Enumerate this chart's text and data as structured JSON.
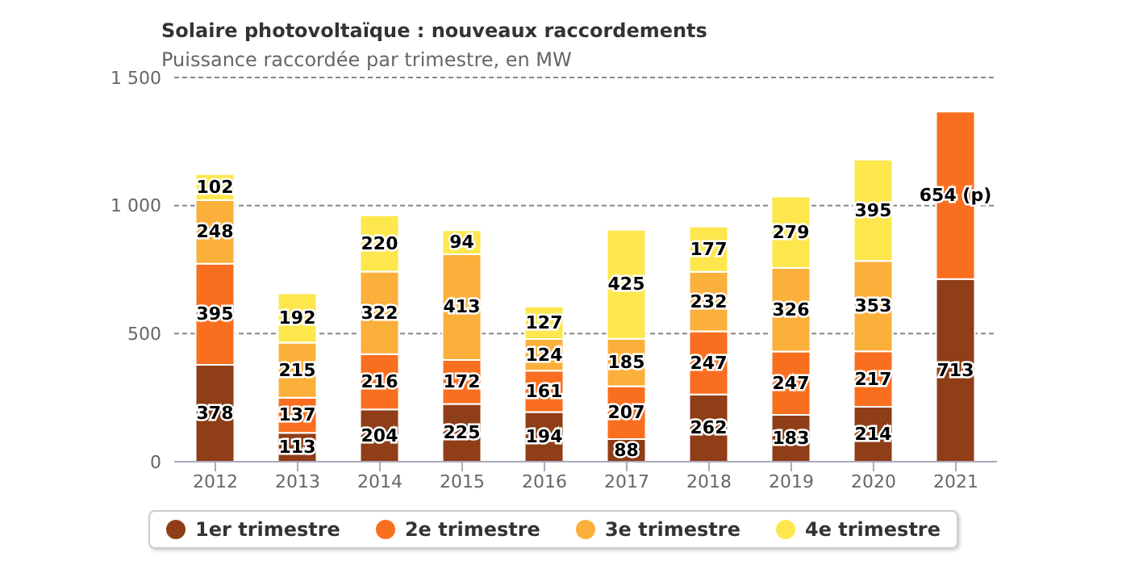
{
  "chart_data": {
    "type": "bar",
    "title": "Solaire photovoltaïque : nouveaux raccordements",
    "subtitle": "Puissance raccordée par trimestre, en MW",
    "categories": [
      "2012",
      "2013",
      "2014",
      "2015",
      "2016",
      "2017",
      "2018",
      "2019",
      "2020",
      "2021"
    ],
    "stacked": true,
    "series": [
      {
        "name": "1er trimestre",
        "color": "#8f3e17",
        "values": [
          378,
          113,
          204,
          225,
          194,
          88,
          262,
          183,
          214,
          713
        ],
        "value_labels": [
          "378",
          "113",
          "204",
          "225",
          "194",
          "88",
          "262",
          "183",
          "214",
          "713"
        ]
      },
      {
        "name": "2e trimestre",
        "color": "#f96f1f",
        "values": [
          395,
          137,
          216,
          172,
          161,
          207,
          247,
          247,
          217,
          654
        ],
        "value_labels": [
          "395",
          "137",
          "216",
          "172",
          "161",
          "207",
          "247",
          "247",
          "217",
          "654 (p)"
        ]
      },
      {
        "name": "3e trimestre",
        "color": "#fbb03b",
        "values": [
          248,
          215,
          322,
          413,
          124,
          185,
          232,
          326,
          353,
          null
        ],
        "value_labels": [
          "248",
          "215",
          "322",
          "413",
          "124",
          "185",
          "232",
          "326",
          "353",
          null
        ]
      },
      {
        "name": "4e trimestre",
        "color": "#fde74c",
        "values": [
          102,
          192,
          220,
          94,
          127,
          425,
          177,
          279,
          395,
          null
        ],
        "value_labels": [
          "102",
          "192",
          "220",
          "94",
          "127",
          "425",
          "177",
          "279",
          "395",
          null
        ]
      }
    ],
    "ylim": [
      0,
      1500
    ],
    "yticks": [
      0,
      500,
      {
        "value": 1000,
        "label": "1 000"
      },
      {
        "value": 1500,
        "label": "1 500"
      }
    ],
    "grid": "y",
    "legend": "bottom"
  }
}
